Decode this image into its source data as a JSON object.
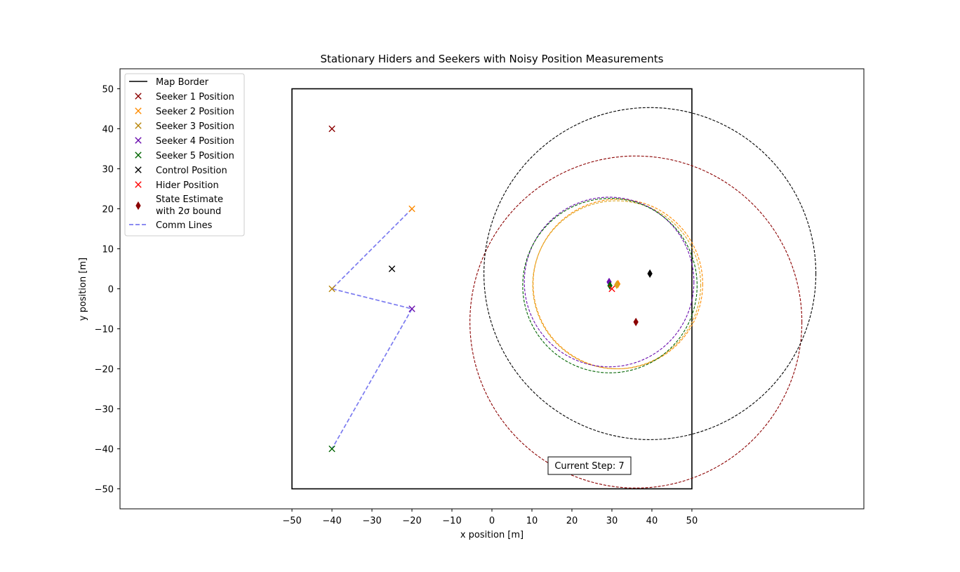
{
  "chart_data": {
    "type": "scatter",
    "title": "Stationary Hiders and Seekers with Noisy Position Measurements",
    "xlabel": "x position [m]",
    "ylabel": "y position [m]",
    "xlim": [
      -93,
      93
    ],
    "ylim": [
      -55,
      55
    ],
    "xticks": [
      -50,
      -40,
      -30,
      -20,
      -10,
      0,
      10,
      20,
      30,
      40,
      50
    ],
    "yticks": [
      -50,
      -40,
      -30,
      -20,
      -10,
      0,
      10,
      20,
      30,
      40,
      50
    ],
    "grid": false,
    "legend_position": "top-left",
    "map_border": {
      "name": "Map Border",
      "x": [
        -50,
        50
      ],
      "y": [
        -50,
        50
      ],
      "color": "#000000"
    },
    "seekers": [
      {
        "name": "Seeker 1 Position",
        "x": -40,
        "y": 40,
        "color": "#8b0000"
      },
      {
        "name": "Seeker 2 Position",
        "x": -20,
        "y": 20,
        "color": "#ff8c00"
      },
      {
        "name": "Seeker 3 Position",
        "x": -40,
        "y": 0,
        "color": "#b8860b"
      },
      {
        "name": "Seeker 4 Position",
        "x": -20,
        "y": -5,
        "color": "#6a0dad"
      },
      {
        "name": "Seeker 5 Position",
        "x": -40,
        "y": -40,
        "color": "#006400"
      }
    ],
    "control": {
      "name": "Control Position",
      "x": -25,
      "y": 5,
      "color": "#000000"
    },
    "hider": {
      "name": "Hider Position",
      "x": 30,
      "y": 0,
      "color": "#ff0000"
    },
    "estimates_legend": [
      "State Estimate",
      "with 2σ bound"
    ],
    "estimates": [
      {
        "x": 36,
        "y": -8.3,
        "r": 41.5,
        "color": "#8b0000"
      },
      {
        "x": 31.5,
        "y": 1.2,
        "r": 21.2,
        "color": "#ff8c00"
      },
      {
        "x": 31.2,
        "y": 1.0,
        "r": 21.0,
        "color": "#daa520"
      },
      {
        "x": 29.3,
        "y": 1.7,
        "r": 21.2,
        "color": "#6a0dad"
      },
      {
        "x": 29.5,
        "y": 0.8,
        "r": 21.8,
        "color": "#006400"
      },
      {
        "x": 39.5,
        "y": 3.8,
        "r": 41.5,
        "color": "#000000"
      }
    ],
    "comm_lines": {
      "name": "Comm Lines",
      "color": "#7b7bf0",
      "x": [
        -20,
        -40,
        -20,
        -40
      ],
      "y": [
        20,
        0,
        -5,
        -40
      ]
    },
    "annotation": "Current Step: 7"
  }
}
